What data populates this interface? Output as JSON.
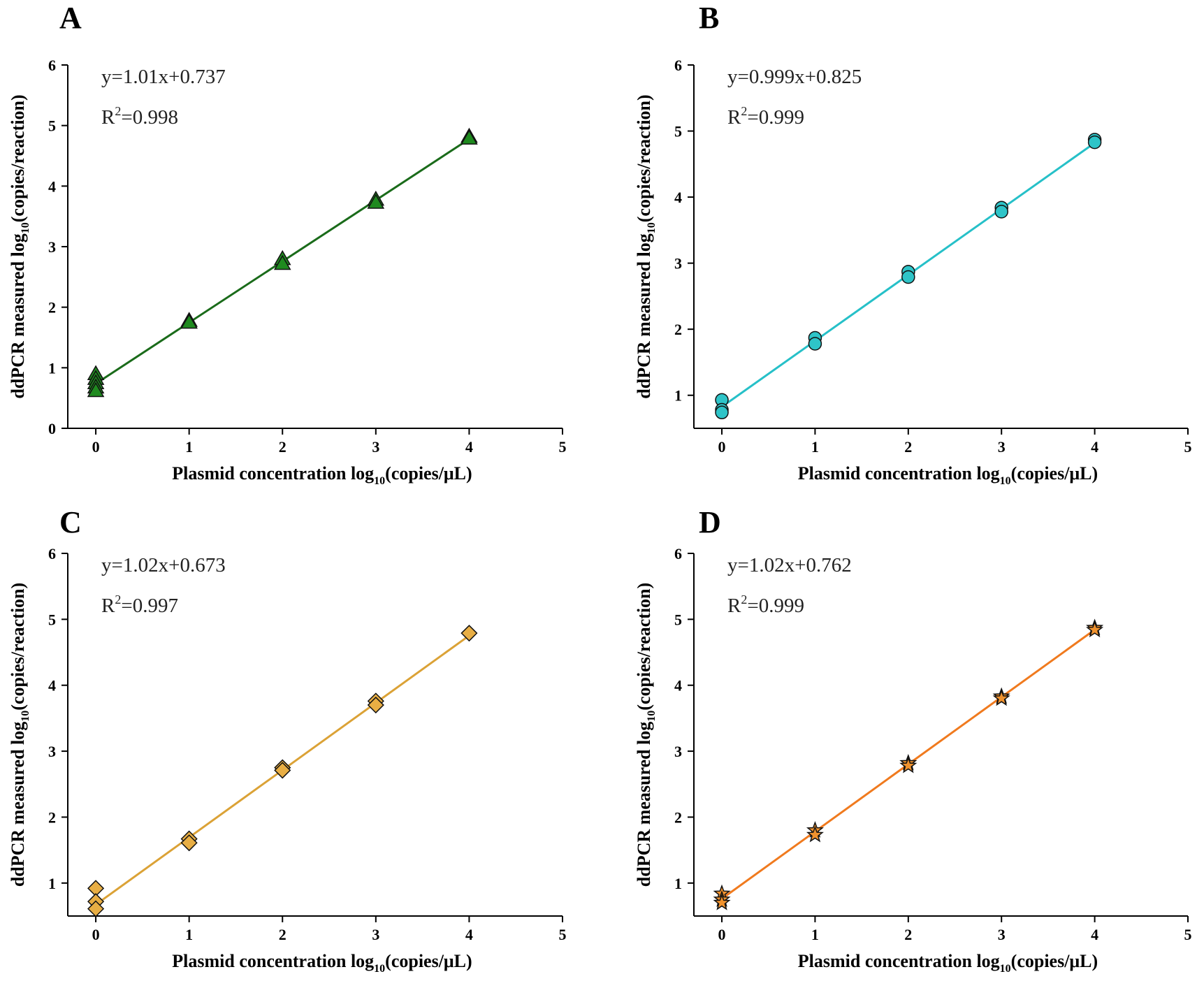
{
  "figure": {
    "x_axis_label": {
      "main": "Plasmid concentration  log",
      "sub": "10",
      "tail": "(copies/μL)"
    },
    "y_axis_label": {
      "main": "ddPCR measured log",
      "sub": "10",
      "tail": "(copies/reaction)"
    }
  },
  "chart_data": [
    {
      "panel": "A",
      "type": "scatter",
      "marker": "triangle",
      "color": "#1f8a1f",
      "line_color": "#1a6b1a",
      "equation": "y=1.01x+0.737",
      "r2": {
        "prefix": "R",
        "sup": "2",
        "value": "=0.998"
      },
      "fit": {
        "slope": 1.01,
        "intercept": 0.737
      },
      "xlim": [
        -0.3,
        5
      ],
      "ylim": [
        0,
        6
      ],
      "xticks": [
        0,
        1,
        2,
        3,
        4,
        5
      ],
      "yticks": [
        0,
        1,
        2,
        3,
        4,
        5,
        6
      ],
      "points": [
        [
          0,
          0.9
        ],
        [
          0,
          0.82
        ],
        [
          0,
          0.75
        ],
        [
          0,
          0.68
        ],
        [
          0,
          0.62
        ],
        [
          1,
          1.78
        ],
        [
          1,
          1.75
        ],
        [
          2,
          2.8
        ],
        [
          2,
          2.72
        ],
        [
          3,
          3.78
        ],
        [
          3,
          3.73
        ],
        [
          4,
          4.82
        ],
        [
          4,
          4.79
        ]
      ]
    },
    {
      "panel": "B",
      "type": "scatter",
      "marker": "circle",
      "color": "#2ec4c8",
      "line_color": "#26c0c8",
      "equation": "y=0.999x+0.825",
      "r2": {
        "prefix": "R",
        "sup": "2",
        "value": "=0.999"
      },
      "fit": {
        "slope": 0.999,
        "intercept": 0.825
      },
      "xlim": [
        -0.3,
        5
      ],
      "ylim": [
        0.5,
        6
      ],
      "xticks": [
        0,
        1,
        2,
        3,
        4,
        5
      ],
      "yticks": [
        1,
        2,
        3,
        4,
        5,
        6
      ],
      "points": [
        [
          0,
          0.93
        ],
        [
          0,
          0.78
        ],
        [
          0,
          0.74
        ],
        [
          1,
          1.87
        ],
        [
          1,
          1.78
        ],
        [
          2,
          2.87
        ],
        [
          2,
          2.79
        ],
        [
          3,
          3.84
        ],
        [
          3,
          3.78
        ],
        [
          4,
          4.87
        ],
        [
          4,
          4.83
        ]
      ]
    },
    {
      "panel": "C",
      "type": "scatter",
      "marker": "diamond",
      "color": "#e8ae44",
      "line_color": "#dba236",
      "equation": "y=1.02x+0.673",
      "r2": {
        "prefix": "R",
        "sup": "2",
        "value": "=0.997"
      },
      "fit": {
        "slope": 1.02,
        "intercept": 0.673
      },
      "xlim": [
        -0.3,
        5
      ],
      "ylim": [
        0.5,
        6
      ],
      "xticks": [
        0,
        1,
        2,
        3,
        4,
        5
      ],
      "yticks": [
        1,
        2,
        3,
        4,
        5,
        6
      ],
      "points": [
        [
          0,
          0.92
        ],
        [
          0,
          0.72
        ],
        [
          0,
          0.61
        ],
        [
          1,
          1.67
        ],
        [
          1,
          1.61
        ],
        [
          2,
          2.75
        ],
        [
          2,
          2.71
        ],
        [
          3,
          3.76
        ],
        [
          3,
          3.7
        ],
        [
          4,
          4.79
        ]
      ]
    },
    {
      "panel": "D",
      "type": "scatter",
      "marker": "star",
      "color": "#f0922e",
      "line_color": "#f07a1e",
      "equation": "y=1.02x+0.762",
      "r2": {
        "prefix": "R",
        "sup": "2",
        "value": "=0.999"
      },
      "fit": {
        "slope": 1.02,
        "intercept": 0.762
      },
      "xlim": [
        -0.3,
        5
      ],
      "ylim": [
        0.5,
        6
      ],
      "xticks": [
        0,
        1,
        2,
        3,
        4,
        5
      ],
      "yticks": [
        1,
        2,
        3,
        4,
        5,
        6
      ],
      "points": [
        [
          0,
          0.84
        ],
        [
          0,
          0.75
        ],
        [
          0,
          0.7
        ],
        [
          1,
          1.8
        ],
        [
          1,
          1.73
        ],
        [
          2,
          2.82
        ],
        [
          2,
          2.78
        ],
        [
          3,
          3.83
        ],
        [
          3,
          3.8
        ],
        [
          4,
          4.87
        ],
        [
          4,
          4.84
        ]
      ]
    }
  ]
}
